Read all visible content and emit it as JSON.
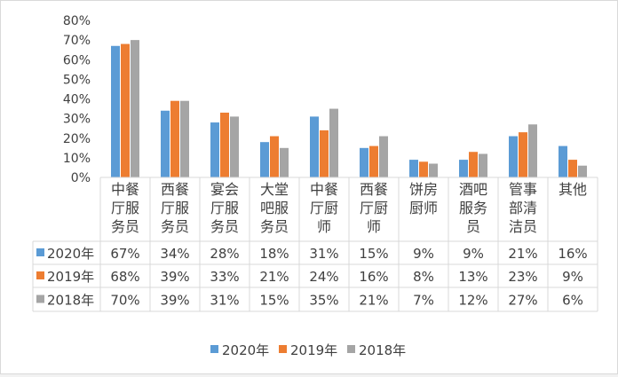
{
  "chart_data": {
    "type": "bar",
    "title": "",
    "xlabel": "",
    "ylabel": "",
    "ylim": [
      0,
      80
    ],
    "yticks": [
      "0%",
      "10%",
      "20%",
      "30%",
      "40%",
      "50%",
      "60%",
      "70%",
      "80%"
    ],
    "categories": [
      [
        "中餐",
        "厅服",
        "务员"
      ],
      [
        "西餐",
        "厅服",
        "务员"
      ],
      [
        "宴会",
        "厅服",
        "务员"
      ],
      [
        "大堂",
        "吧服",
        "务员"
      ],
      [
        "中餐",
        "厅厨",
        "师"
      ],
      [
        "西餐",
        "厅厨",
        "师"
      ],
      [
        "饼房",
        "厨师"
      ],
      [
        "酒吧",
        "服务",
        "员"
      ],
      [
        "管事",
        "部清",
        "洁员"
      ],
      [
        "其他"
      ]
    ],
    "series": [
      {
        "name": "2020年",
        "color": "#5b9bd5",
        "values": [
          67,
          34,
          28,
          18,
          31,
          15,
          9,
          9,
          21,
          16
        ],
        "labels": [
          "67%",
          "34%",
          "28%",
          "18%",
          "31%",
          "15%",
          "9%",
          "9%",
          "21%",
          "16%"
        ]
      },
      {
        "name": "2019年",
        "color": "#ed7d31",
        "values": [
          68,
          39,
          33,
          21,
          24,
          16,
          8,
          13,
          23,
          9
        ],
        "labels": [
          "68%",
          "39%",
          "33%",
          "21%",
          "24%",
          "16%",
          "8%",
          "13%",
          "23%",
          "9%"
        ]
      },
      {
        "name": "2018年",
        "color": "#a5a5a5",
        "values": [
          70,
          39,
          31,
          15,
          35,
          21,
          7,
          12,
          27,
          6
        ],
        "labels": [
          "70%",
          "39%",
          "31%",
          "15%",
          "35%",
          "21%",
          "7%",
          "12%",
          "27%",
          "6%"
        ]
      }
    ],
    "grid": false,
    "legend": "bottom",
    "data_table": true
  }
}
